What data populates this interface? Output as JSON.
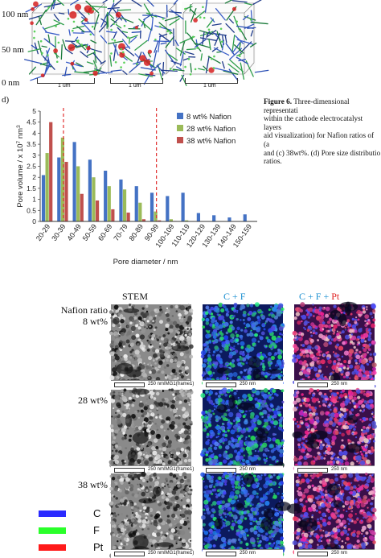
{
  "top_axis": {
    "labels": [
      "100 nm",
      "50 nm",
      "0 nm"
    ]
  },
  "cubes": [
    {
      "scale": "1 um"
    },
    {
      "scale": "1 um"
    },
    {
      "scale": "1 um"
    }
  ],
  "caption": {
    "lead": "Figure 6.",
    "lines": [
      "Three-dimensional representati",
      "within the cathode electrocatalyst layers",
      "aid visualization) for Nafion ratios of (a",
      "and (c) 38wt%. (d) Pore size distributio",
      "ratios."
    ]
  },
  "panel_label": "d)",
  "chart_data": {
    "type": "bar",
    "xlabel": "Pore diameter / nm",
    "ylabel": "Pore volume / x 10",
    "ylabel_sup1": "7",
    "ylabel_mid": " nm",
    "ylabel_sup2": "3",
    "ylim": [
      0,
      5
    ],
    "yticks": [
      "0",
      "0.5",
      "1",
      "1.5",
      "2",
      "2.5",
      "3",
      "3.5",
      "4",
      "4.5",
      "5"
    ],
    "categories": [
      "20-29",
      "30-39",
      "40-49",
      "50-59",
      "60-69",
      "70-79",
      "80-89",
      "90-99",
      "100-109",
      "110-119",
      "120-129",
      "130-139",
      "140-149",
      "150-159"
    ],
    "series": [
      {
        "name": "8 wt% Nafion",
        "color": "#4472c4",
        "values": [
          2.1,
          2.9,
          3.6,
          2.8,
          2.3,
          1.9,
          1.6,
          1.3,
          1.15,
          1.3,
          0.38,
          0.28,
          0.18,
          0.32
        ]
      },
      {
        "name": "28 wt% Nafion",
        "color": "#9bbb59",
        "values": [
          3.1,
          3.8,
          2.5,
          2.0,
          1.6,
          1.45,
          0.85,
          0.45,
          0.1,
          0.05,
          0.0,
          0.0,
          0.0,
          0.0
        ]
      },
      {
        "name": "38 wt% Nafion",
        "color": "#c0504d",
        "values": [
          4.5,
          2.7,
          1.25,
          0.95,
          0.55,
          0.4,
          0.1,
          0.05,
          0.02,
          0.0,
          0.0,
          0.0,
          0.0,
          0.0
        ]
      }
    ],
    "dashed_lines_at": [
      "30-39",
      "90-99"
    ],
    "dashed_color": "#e03030",
    "legend": "top-right"
  },
  "stem": {
    "headers": {
      "stem": "STEM",
      "cf": "C + F",
      "cf_color": "#1a8fd0",
      "cfpt_prefix": "C + F + ",
      "cfpt_pt": "Pt",
      "pt_color": "#e02020"
    },
    "row_title": "Nafion ratio",
    "rows": [
      {
        "label": "8 wt%",
        "scale": "250 nm",
        "tag": "IMG1(frame1)"
      },
      {
        "label": "28 wt%",
        "scale": "250 nm",
        "tag": "IMG1(frame1)"
      },
      {
        "label": "38 wt%",
        "scale": "250 nm",
        "tag": "IMG1(frame1)"
      }
    ],
    "legend": [
      {
        "label": "C",
        "color": "#2a2aff"
      },
      {
        "label": "F",
        "color": "#2aff2a"
      },
      {
        "label": "Pt",
        "color": "#ff1a1a"
      }
    ]
  }
}
